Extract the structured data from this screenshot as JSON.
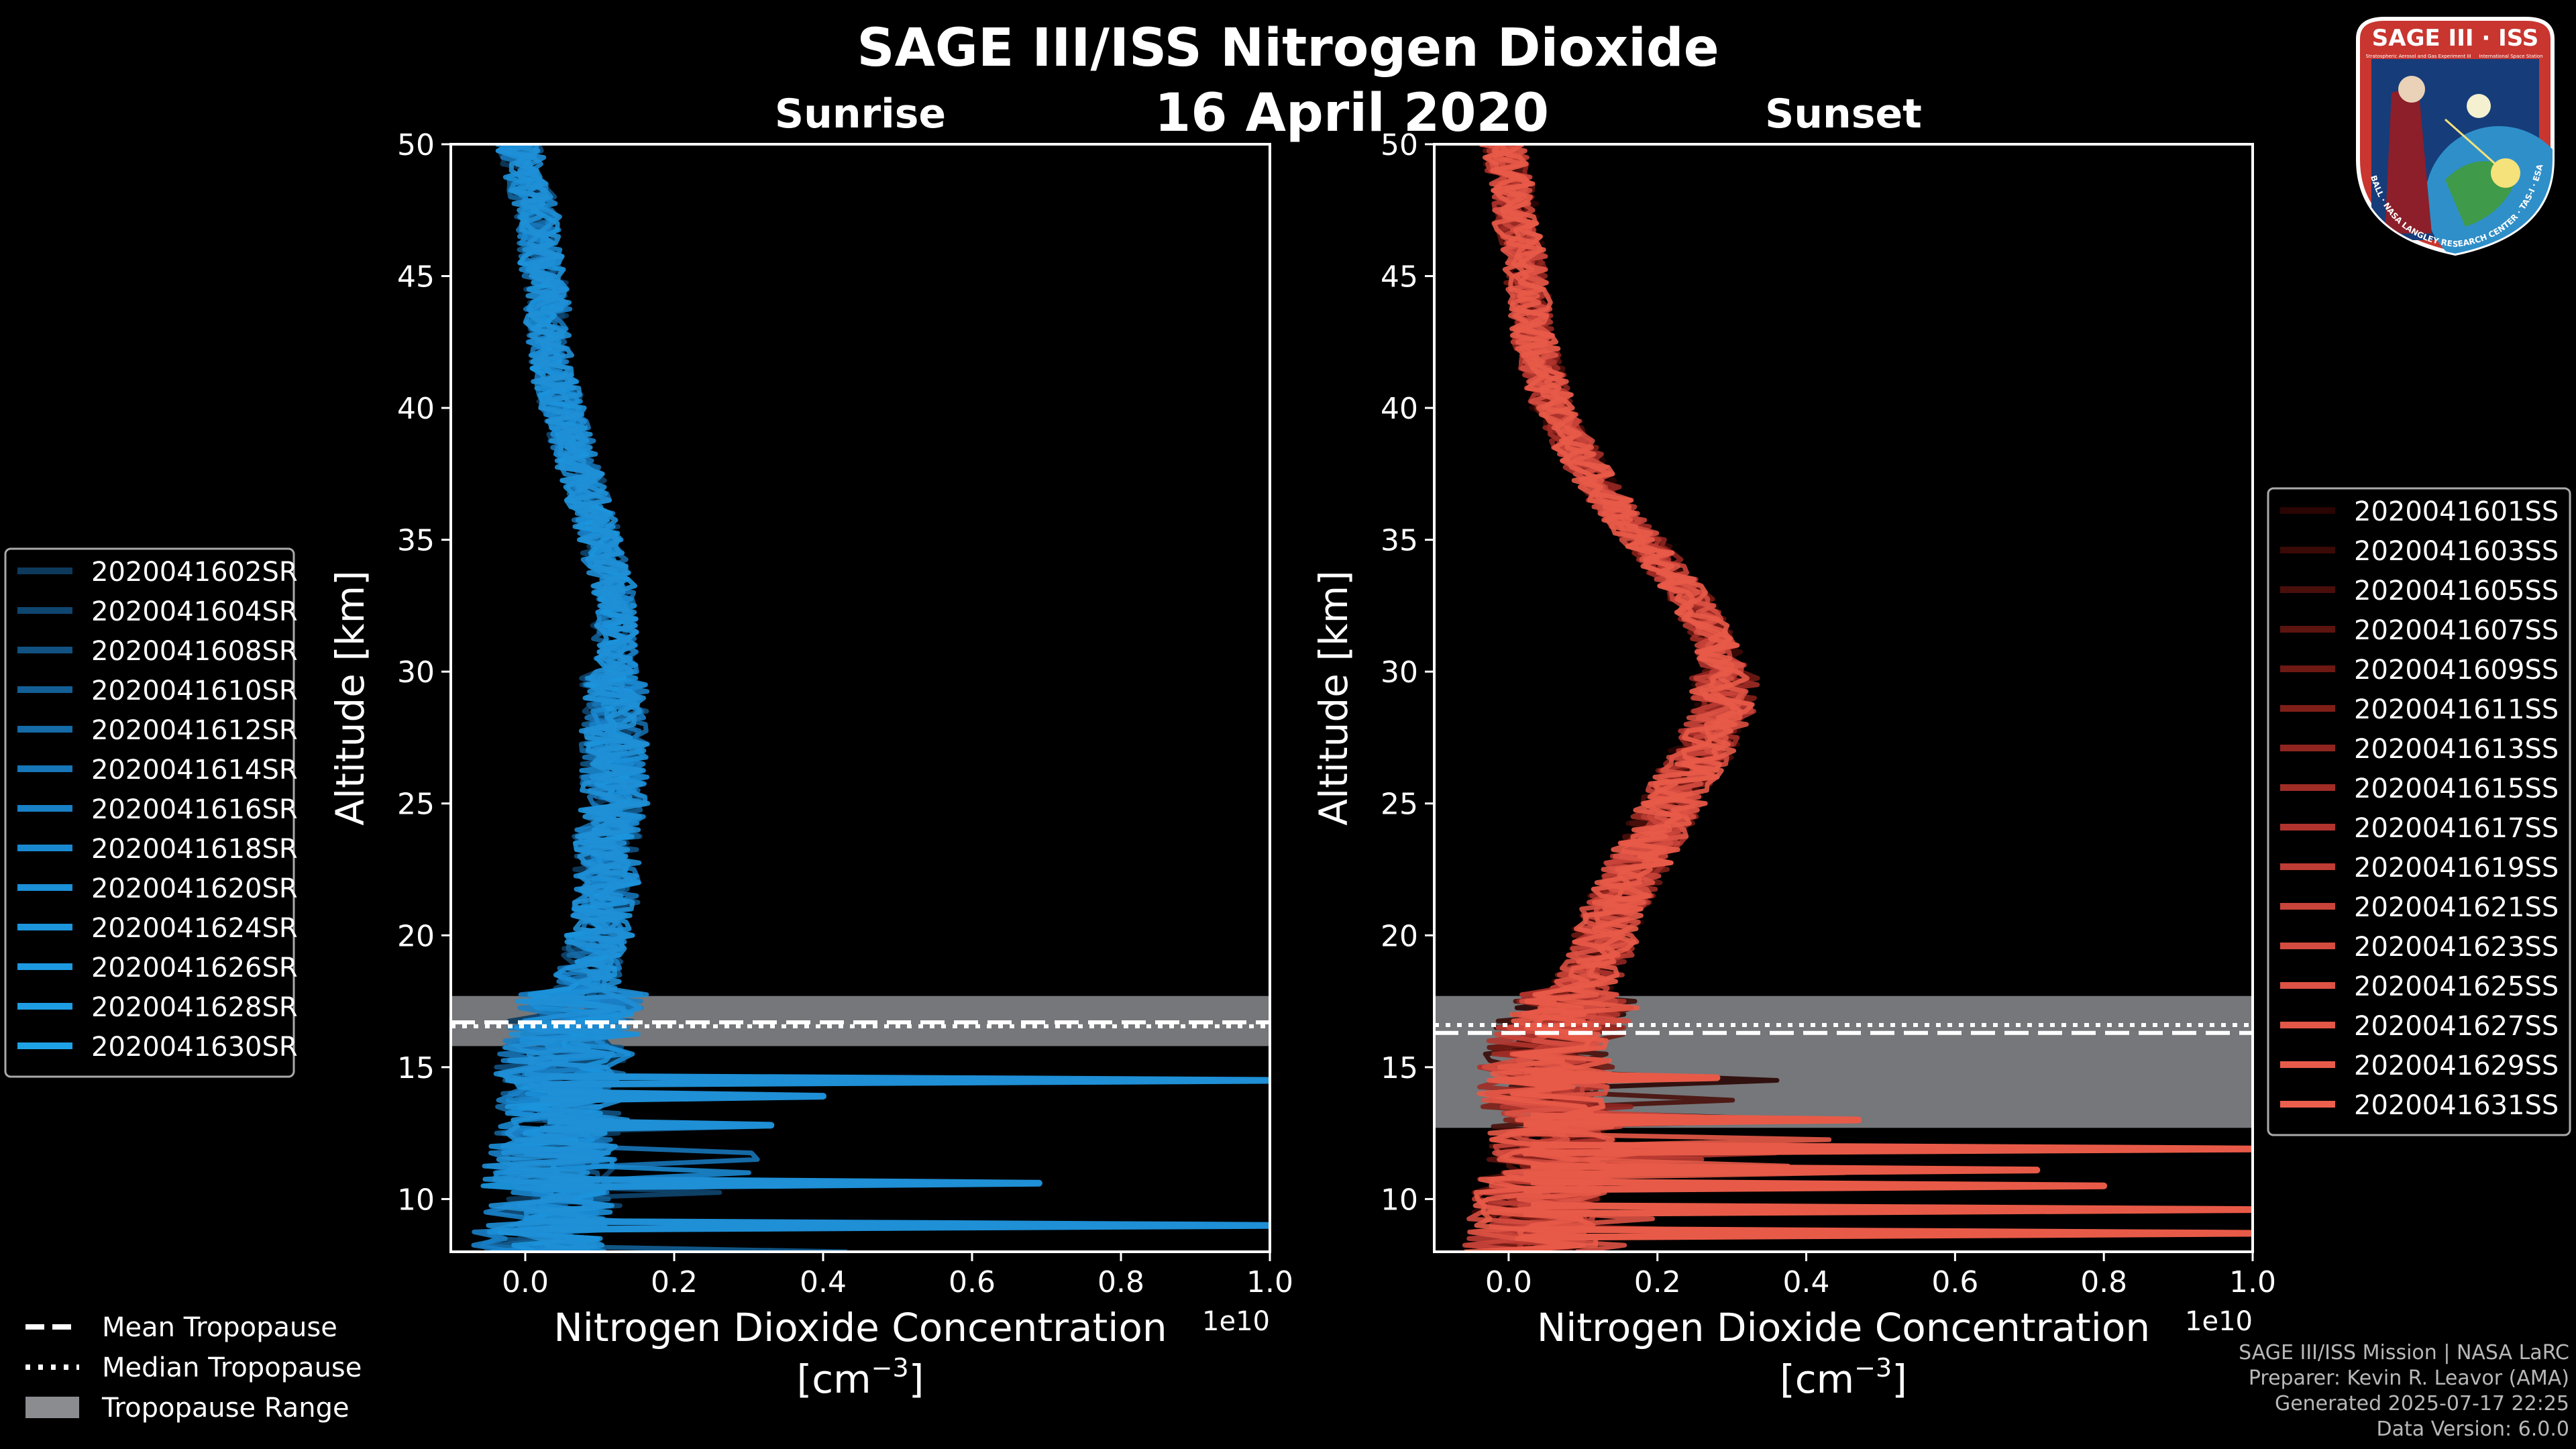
{
  "figure": {
    "title": "SAGE III/ISS Nitrogen Dioxide",
    "date": "16 April 2020",
    "badge": {
      "name": "SAGE III · ISS",
      "subtitle": "Stratospheric Aerosol and Gas Experiment III",
      "subtitle2": "International Space Station",
      "ring": "BALL · NASA LANGLEY RESEARCH CENTER · TAS-I · ESA"
    },
    "footer": {
      "mission": "SAGE III/ISS Mission | NASA LaRC",
      "preparer": "Preparer: Kevin R. Leavor (AMA)",
      "generated": "Generated 2025-07-17 22:25",
      "version": "Data Version: 6.0.0"
    },
    "common_legend": [
      {
        "label": "Mean Tropopause",
        "style": "dashed"
      },
      {
        "label": "Median Tropopause",
        "style": "dotted"
      },
      {
        "label": "Tropopause Range",
        "style": "patch"
      }
    ]
  },
  "chart_data": [
    {
      "type": "line",
      "title": "Sunrise",
      "xlabel": "Nitrogen Dioxide Concentration",
      "xlabel_units": "[cm",
      "xlabel_exp": "−3",
      "xlabel_close": "]",
      "ylabel": "Altitude [km]",
      "x_multiplier": "1e10",
      "xlim": [
        -0.1,
        1.0
      ],
      "ylim": [
        8,
        50
      ],
      "xticks": [
        0.0,
        0.2,
        0.4,
        0.6,
        0.8,
        1.0
      ],
      "xtick_labels": [
        "0.0",
        "0.2",
        "0.4",
        "0.6",
        "0.8",
        "1.0"
      ],
      "yticks": [
        10,
        15,
        20,
        25,
        30,
        35,
        40,
        45,
        50
      ],
      "color": "#1f8fd6",
      "tropopause": {
        "mean": 16.7,
        "median": 16.55,
        "range": [
          15.8,
          17.7
        ]
      },
      "profile": {
        "altitude": [
          9,
          10,
          11,
          12,
          13,
          14,
          15,
          16,
          17,
          18,
          19,
          20,
          21,
          22,
          23,
          24,
          25,
          26,
          27,
          28,
          29,
          30,
          31,
          32,
          33,
          34,
          35,
          36,
          37,
          38,
          39,
          40,
          41,
          42,
          43,
          44,
          45,
          46,
          47,
          48,
          49,
          50
        ],
        "value": [
          0.02,
          0.03,
          0.03,
          0.04,
          0.04,
          0.05,
          0.05,
          0.06,
          0.07,
          0.08,
          0.09,
          0.1,
          0.11,
          0.11,
          0.11,
          0.11,
          0.12,
          0.12,
          0.12,
          0.12,
          0.12,
          0.12,
          0.12,
          0.12,
          0.12,
          0.11,
          0.1,
          0.09,
          0.08,
          0.07,
          0.06,
          0.05,
          0.04,
          0.035,
          0.03,
          0.03,
          0.025,
          0.02,
          0.02,
          0.01,
          0.0,
          -0.01
        ]
      },
      "spikes": [
        {
          "altitude": 14.5,
          "value": 1.0
        },
        {
          "altitude": 9.0,
          "value": 1.0
        },
        {
          "altitude": 10.6,
          "value": 0.69
        },
        {
          "altitude": 13.9,
          "value": 0.4
        },
        {
          "altitude": 12.8,
          "value": 0.33
        }
      ],
      "series": [
        {
          "name": "2020041602SR"
        },
        {
          "name": "2020041604SR"
        },
        {
          "name": "2020041608SR"
        },
        {
          "name": "2020041610SR"
        },
        {
          "name": "2020041612SR"
        },
        {
          "name": "2020041614SR"
        },
        {
          "name": "2020041616SR"
        },
        {
          "name": "2020041618SR"
        },
        {
          "name": "2020041620SR"
        },
        {
          "name": "2020041624SR"
        },
        {
          "name": "2020041626SR"
        },
        {
          "name": "2020041628SR"
        },
        {
          "name": "2020041630SR"
        }
      ],
      "legend_colors": [
        "#0d3a5c",
        "#0f4670",
        "#115282",
        "#135f95",
        "#156ba8",
        "#1776b8",
        "#1980c6",
        "#1a88d0",
        "#1b8fd8",
        "#1c95dd",
        "#1d99e0",
        "#1e9de3",
        "#1fa1e6"
      ]
    },
    {
      "type": "line",
      "title": "Sunset",
      "xlabel": "Nitrogen Dioxide Concentration",
      "xlabel_units": "[cm",
      "xlabel_exp": "−3",
      "xlabel_close": "]",
      "ylabel": "Altitude [km]",
      "x_multiplier": "1e10",
      "xlim": [
        -0.1,
        1.0
      ],
      "ylim": [
        8,
        50
      ],
      "xticks": [
        0.0,
        0.2,
        0.4,
        0.6,
        0.8,
        1.0
      ],
      "xtick_labels": [
        "0.0",
        "0.2",
        "0.4",
        "0.6",
        "0.8",
        "1.0"
      ],
      "yticks": [
        10,
        15,
        20,
        25,
        30,
        35,
        40,
        45,
        50
      ],
      "color": "#e85a48",
      "tropopause": {
        "mean": 16.3,
        "median": 16.6,
        "range": [
          12.7,
          17.7
        ]
      },
      "profile": {
        "altitude": [
          9,
          10,
          11,
          12,
          13,
          14,
          15,
          16,
          17,
          18,
          19,
          20,
          21,
          22,
          23,
          24,
          25,
          26,
          27,
          28,
          29,
          30,
          31,
          32,
          33,
          34,
          35,
          36,
          37,
          38,
          39,
          40,
          41,
          42,
          43,
          44,
          45,
          46,
          47,
          48,
          49,
          50
        ],
        "value": [
          0.03,
          0.04,
          0.05,
          0.06,
          0.05,
          0.05,
          0.05,
          0.06,
          0.08,
          0.1,
          0.12,
          0.13,
          0.14,
          0.16,
          0.18,
          0.2,
          0.22,
          0.24,
          0.26,
          0.28,
          0.29,
          0.29,
          0.28,
          0.26,
          0.24,
          0.21,
          0.18,
          0.15,
          0.12,
          0.1,
          0.08,
          0.06,
          0.05,
          0.04,
          0.03,
          0.03,
          0.02,
          0.02,
          0.01,
          0.01,
          0.0,
          -0.01
        ]
      },
      "spikes": [
        {
          "altitude": 11.9,
          "value": 1.0
        },
        {
          "altitude": 9.6,
          "value": 1.0
        },
        {
          "altitude": 8.7,
          "value": 1.0
        },
        {
          "altitude": 10.5,
          "value": 0.8
        },
        {
          "altitude": 11.1,
          "value": 0.71
        },
        {
          "altitude": 13.0,
          "value": 0.47
        },
        {
          "altitude": 14.6,
          "value": 0.28
        }
      ],
      "series": [
        {
          "name": "2020041601SS"
        },
        {
          "name": "2020041603SS"
        },
        {
          "name": "2020041605SS"
        },
        {
          "name": "2020041607SS"
        },
        {
          "name": "2020041609SS"
        },
        {
          "name": "2020041611SS"
        },
        {
          "name": "2020041613SS"
        },
        {
          "name": "2020041615SS"
        },
        {
          "name": "2020041617SS"
        },
        {
          "name": "2020041619SS"
        },
        {
          "name": "2020041621SS"
        },
        {
          "name": "2020041623SS"
        },
        {
          "name": "2020041625SS"
        },
        {
          "name": "2020041627SS"
        },
        {
          "name": "2020041629SS"
        },
        {
          "name": "2020041631SS"
        }
      ],
      "legend_colors": [
        "#2a0504",
        "#3a0a07",
        "#4a0f0b",
        "#5c140f",
        "#6e1913",
        "#7f1f17",
        "#902520",
        "#a02c26",
        "#b0342d",
        "#bd3c33",
        "#c9443a",
        "#d44c40",
        "#dc5244",
        "#e25747",
        "#e85b4a",
        "#ec5f4d"
      ]
    }
  ]
}
